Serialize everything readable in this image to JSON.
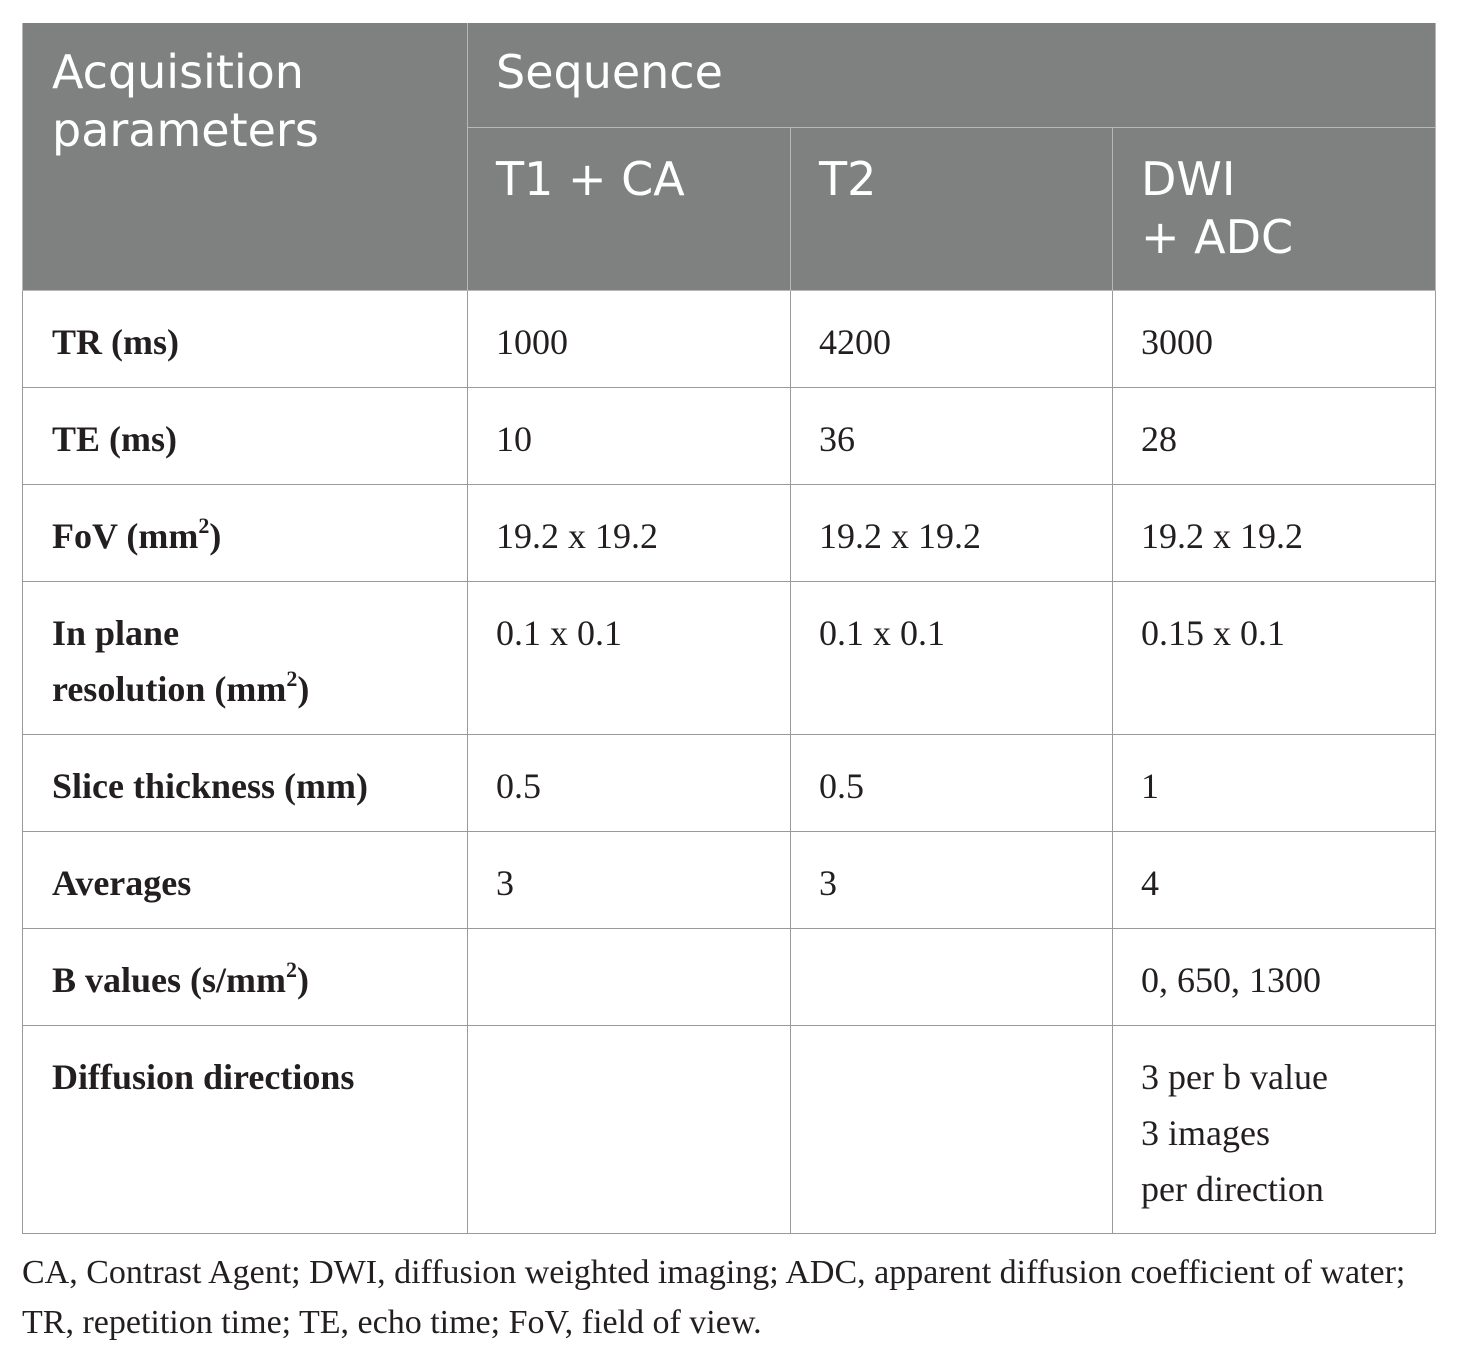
{
  "table": {
    "param_header": "Acquisition\nparameters",
    "sequence_header": "Sequence",
    "columns": [
      "T1 + CA",
      "T2",
      "DWI\n+ ADC"
    ],
    "rows": [
      {
        "label": "TR (ms)",
        "sup": "",
        "label_suffix": "",
        "values": [
          "1000",
          "4200",
          "3000"
        ]
      },
      {
        "label": "TE (ms)",
        "sup": "",
        "label_suffix": "",
        "values": [
          "10",
          "36",
          "28"
        ]
      },
      {
        "label": "FoV (mm",
        "sup": "2",
        "label_suffix": ")",
        "values": [
          "19.2 x 19.2",
          "19.2 x 19.2",
          "19.2 x 19.2"
        ]
      },
      {
        "label": "In plane\nresolution (mm",
        "sup": "2",
        "label_suffix": ")",
        "values": [
          "0.1 x 0.1",
          "0.1 x 0.1",
          "0.15 x 0.1"
        ]
      },
      {
        "label": "Slice thickness (mm)",
        "sup": "",
        "label_suffix": "",
        "values": [
          "0.5",
          "0.5",
          "1"
        ]
      },
      {
        "label": "Averages",
        "sup": "",
        "label_suffix": "",
        "values": [
          "3",
          "3",
          "4"
        ]
      },
      {
        "label": "B values (s/mm",
        "sup": "2",
        "label_suffix": ")",
        "values": [
          "",
          "",
          "0, 650, 1300"
        ]
      },
      {
        "label": "Diffusion directions",
        "sup": "",
        "label_suffix": "",
        "values": [
          "",
          "",
          "3 per b value\n3 images\nper direction"
        ]
      }
    ]
  },
  "footnote": "CA, Contrast Agent; DWI, diffusion weighted imaging; ADC, apparent diffusion coefficient of water; TR, repetition time; TE, echo time; FoV, field of view.",
  "colors": {
    "header_bg": "#7f8180",
    "header_text": "#ffffff",
    "body_text": "#231f20",
    "grid": "#9a9a9a"
  }
}
